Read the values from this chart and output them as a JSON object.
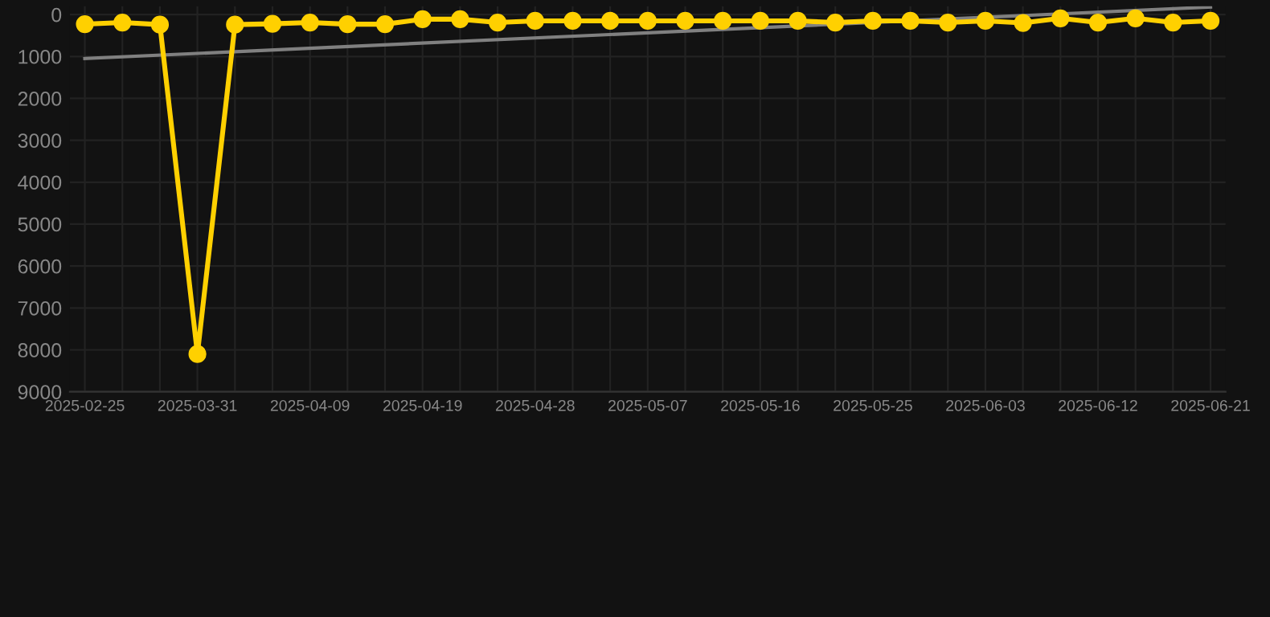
{
  "chart_data": {
    "type": "line",
    "categories": [
      "2025-02-25",
      null,
      null,
      "2025-03-31",
      null,
      null,
      "2025-04-09",
      null,
      null,
      "2025-04-19",
      null,
      null,
      "2025-04-28",
      null,
      null,
      "2025-05-07",
      null,
      null,
      "2025-05-16",
      null,
      null,
      "2025-05-25",
      null,
      null,
      "2025-06-03",
      null,
      null,
      "2025-06-12",
      null,
      null,
      "2025-06-21"
    ],
    "series": [
      {
        "color": "#ffd000",
        "marker": "circle",
        "values": [
          230,
          190,
          240,
          8100,
          240,
          220,
          190,
          230,
          230,
          110,
          110,
          190,
          150,
          150,
          150,
          150,
          150,
          150,
          150,
          150,
          190,
          150,
          150,
          190,
          150,
          200,
          90,
          190,
          90,
          190,
          150
        ]
      },
      {
        "color": "#808080",
        "marker": "none",
        "values": [
          1050,
          null,
          null,
          null,
          null,
          null,
          null,
          null,
          null,
          null,
          null,
          null,
          null,
          null,
          null,
          null,
          null,
          null,
          null,
          null,
          null,
          null,
          null,
          null,
          null,
          null,
          null,
          null,
          null,
          null,
          -180
        ]
      }
    ],
    "ylim": [
      9000,
      -200
    ],
    "yticks": [
      0,
      1000,
      2000,
      3000,
      4000,
      5000,
      6000,
      7000,
      8000,
      9000
    ],
    "grid": true
  }
}
